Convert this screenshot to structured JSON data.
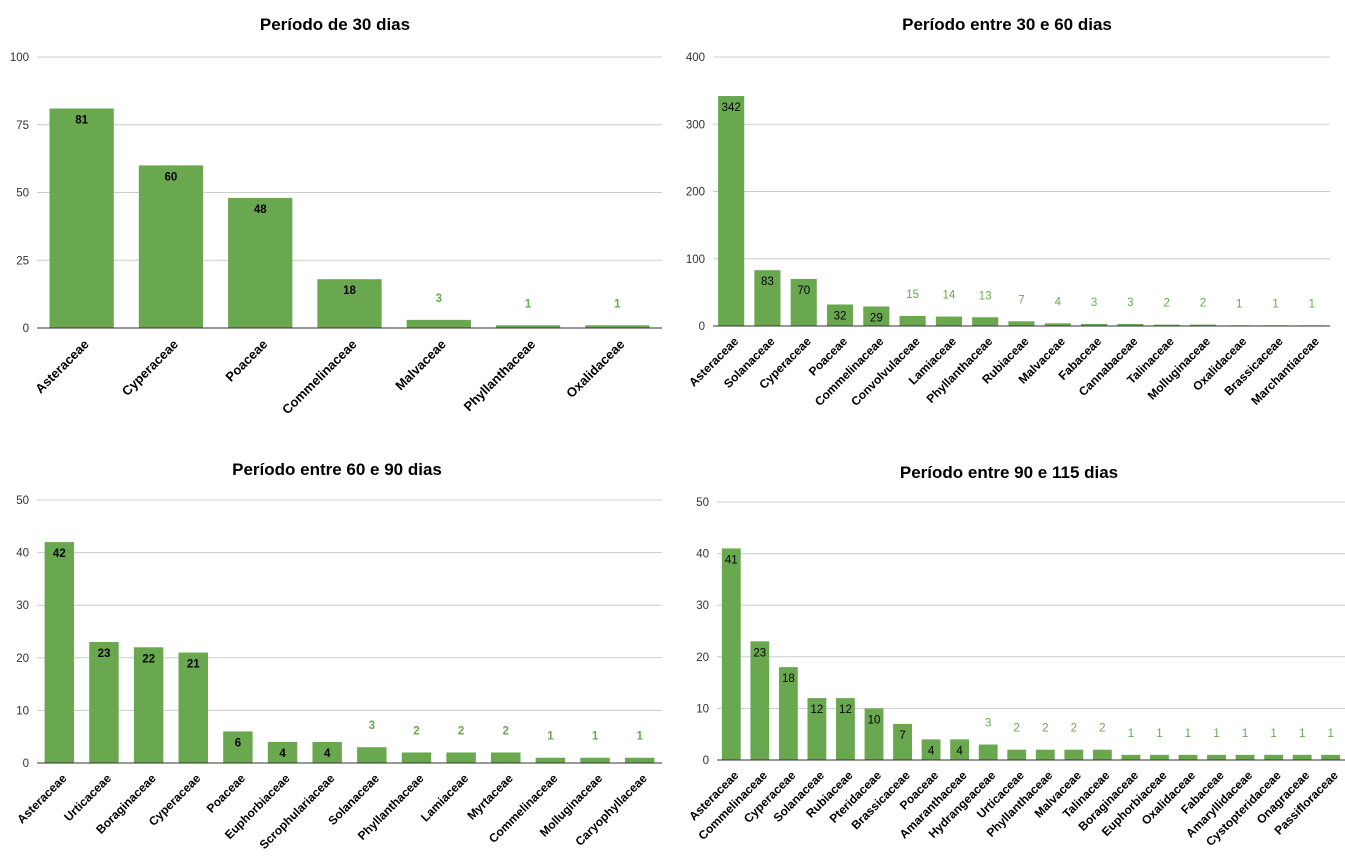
{
  "colors": {
    "bar": "#6aa84f",
    "grid": "#cccccc",
    "axis": "#333333",
    "outside_label": "#6aa84f",
    "inside_label": "#000000"
  },
  "chart_data": [
    {
      "type": "bar",
      "title": "Período de 30 dias",
      "ylim": [
        0,
        100
      ],
      "yticks": [
        0,
        25,
        50,
        75,
        100
      ],
      "grid": true,
      "categories": [
        "Asteraceae",
        "Cyperaceae",
        "Poaceae",
        "Commelinaceae",
        "Malvaceae",
        "Phyllanthaceae",
        "Oxalidaceae"
      ],
      "values": [
        81,
        60,
        48,
        18,
        3,
        1,
        1
      ]
    },
    {
      "type": "bar",
      "title": "Período entre 30 e 60 dias",
      "ylim": [
        0,
        400
      ],
      "yticks": [
        0,
        100,
        200,
        300,
        400
      ],
      "grid": true,
      "categories": [
        "Asteraceae",
        "Solanaceae",
        "Cyperaceae",
        "Poaceae",
        "Commelinaceae",
        "Convolvulaceae",
        "Lamiaceae",
        "Phyllanthaceae",
        "Rubiaceae",
        "Malvaceae",
        "Fabaceae",
        "Cannabaceae",
        "Talinaceae",
        "Molluginaceae",
        "Oxalidaceae",
        "Brassicaceae",
        "Marchantiaceae"
      ],
      "values": [
        342,
        83,
        70,
        32,
        29,
        15,
        14,
        13,
        7,
        4,
        3,
        3,
        2,
        2,
        1,
        1,
        1
      ]
    },
    {
      "type": "bar",
      "title": "Período entre 60 e 90 dias",
      "ylim": [
        0,
        50
      ],
      "yticks": [
        0,
        10,
        20,
        30,
        40,
        50
      ],
      "grid": true,
      "categories": [
        "Asteraceae",
        "Urticaceae",
        "Boraginaceae",
        "Cyperaceae",
        "Poaceae",
        "Euphorbiaceae",
        "Scrophulariaceae",
        "Solanaceae",
        "Phyllanthaceae",
        "Lamiaceae",
        "Myrtaceae",
        "Commelinaceae",
        "Molluginaceae",
        "Caryophyllaceae"
      ],
      "values": [
        42,
        23,
        22,
        21,
        6,
        4,
        4,
        3,
        2,
        2,
        2,
        1,
        1,
        1
      ]
    },
    {
      "type": "bar",
      "title": "Período entre 90 e 115 dias",
      "ylim": [
        0,
        50
      ],
      "yticks": [
        0,
        10,
        20,
        30,
        40,
        50
      ],
      "grid": true,
      "categories": [
        "Asteraceae",
        "Commelinaceae",
        "Cyperaceae",
        "Solanaceae",
        "Rubiaceae",
        "Pteridaceae",
        "Brassicaceae",
        "Poaceae",
        "Amaranthaceae",
        "Hydrangeaceae",
        "Urticaceae",
        "Phyllanthaceae",
        "Malvaceae",
        "Talinaceae",
        "Boraginaceae",
        "Euphorbiaceae",
        "Oxalidaceae",
        "Fabaceae",
        "Amaryllidaceae",
        "Cystopteridaceae",
        "Onagraceae",
        "Passifloraceae"
      ],
      "values": [
        41,
        23,
        18,
        12,
        12,
        10,
        7,
        4,
        4,
        3,
        2,
        2,
        2,
        2,
        1,
        1,
        1,
        1,
        1,
        1,
        1,
        1
      ]
    }
  ]
}
